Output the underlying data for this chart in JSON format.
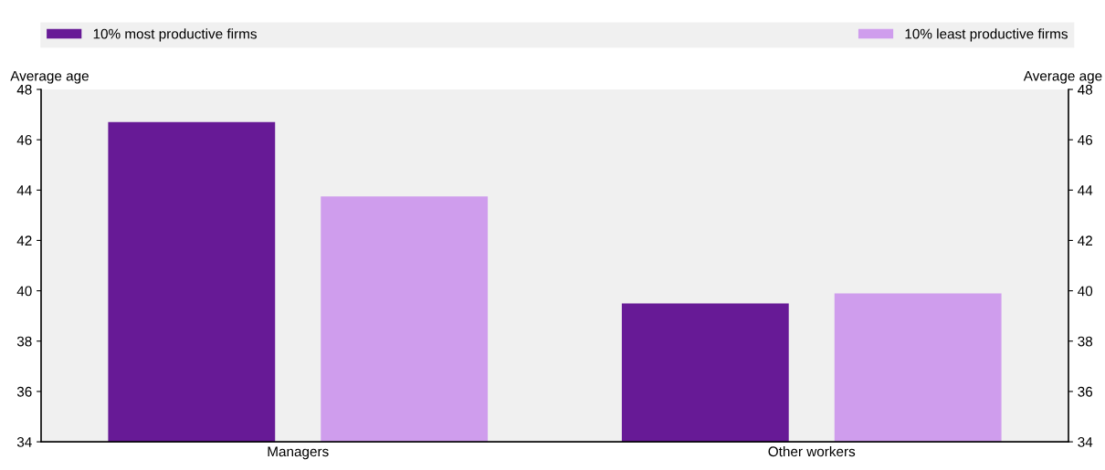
{
  "chart_data": {
    "type": "bar",
    "categories": [
      "Managers",
      "Other workers"
    ],
    "series": [
      {
        "name": "10% most productive firms",
        "color": "#671a96",
        "values": [
          46.7,
          39.5
        ]
      },
      {
        "name": "10% least productive firms",
        "color": "#cf9ded",
        "values": [
          43.75,
          39.9
        ]
      }
    ],
    "ylabel": "Average age",
    "y2label": "Average age",
    "ylim": [
      34,
      48
    ],
    "yticks": [
      34,
      36,
      38,
      40,
      42,
      44,
      46,
      48
    ],
    "y2lim": [
      34,
      48
    ],
    "y2ticks": [
      34,
      36,
      38,
      40,
      42,
      44,
      46,
      48
    ],
    "legend": "top",
    "grid": false
  }
}
